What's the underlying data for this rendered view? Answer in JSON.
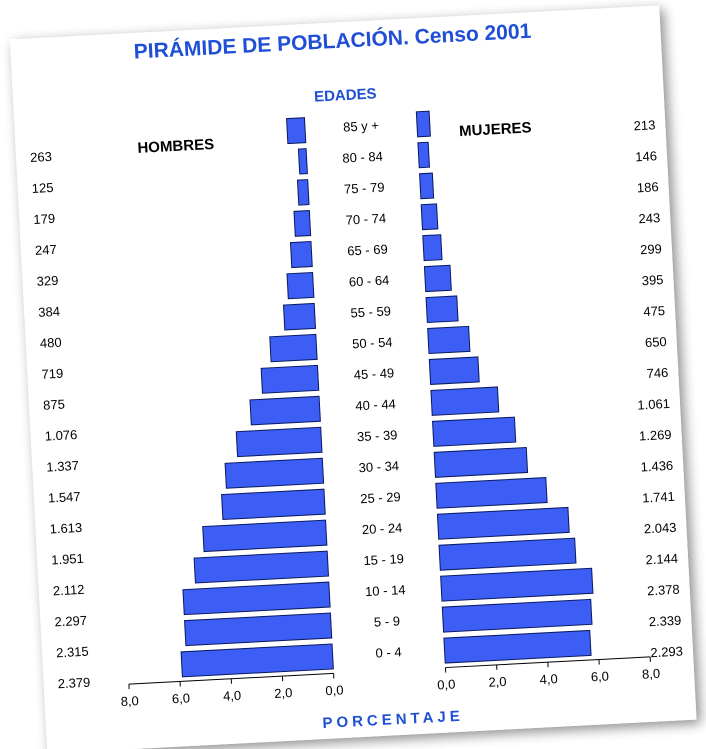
{
  "chart_data": {
    "type": "pyramid",
    "title": "PIRÁMIDE DE POBLACIÓN. Censo 2001",
    "category_axis_label": "EDADES",
    "x_axis_label": "PORCENTAJE",
    "categories": [
      "85 y +",
      "80 - 84",
      "75 - 79",
      "70 - 74",
      "65 - 69",
      "60 - 64",
      "55 - 59",
      "50 - 54",
      "45 - 49",
      "40 - 44",
      "35 - 39",
      "30 - 34",
      "25 - 29",
      "20 - 24",
      "15 - 19",
      "10 - 14",
      "5 - 9",
      "0 - 4"
    ],
    "series": [
      {
        "name": "HOMBRES",
        "color": "#3c5ef4",
        "side": "left",
        "values": [
          0.7,
          0.3,
          0.4,
          0.6,
          0.8,
          1.0,
          1.2,
          1.8,
          2.2,
          2.7,
          3.3,
          3.8,
          4.0,
          4.8,
          5.2,
          5.7,
          5.7,
          5.9
        ],
        "counts": [
          "263",
          "125",
          "179",
          "247",
          "329",
          "384",
          "480",
          "719",
          "875",
          "1.076",
          "1.337",
          "1.547",
          "1.613",
          "1.951",
          "2.112",
          "2.297",
          "2.315",
          "2.379"
        ]
      },
      {
        "name": "MUJERES",
        "color": "#3c5ef4",
        "side": "right",
        "values": [
          0.5,
          0.4,
          0.5,
          0.6,
          0.7,
          1.0,
          1.2,
          1.6,
          1.9,
          2.6,
          3.2,
          3.6,
          4.3,
          5.1,
          5.3,
          5.9,
          5.8,
          5.7
        ],
        "counts": [
          "213",
          "146",
          "186",
          "243",
          "299",
          "395",
          "475",
          "650",
          "746",
          "1.061",
          "1.269",
          "1.436",
          "1.741",
          "2.043",
          "2.144",
          "2.378",
          "2.339",
          "2.293"
        ]
      }
    ],
    "xlim": [
      0,
      8
    ],
    "xticks": [
      {
        "value": 0,
        "label": "0,0"
      },
      {
        "value": 2,
        "label": "2,0"
      },
      {
        "value": 4,
        "label": "4,0"
      },
      {
        "value": 6,
        "label": "6,0"
      },
      {
        "value": 8,
        "label": "8,0"
      }
    ]
  }
}
